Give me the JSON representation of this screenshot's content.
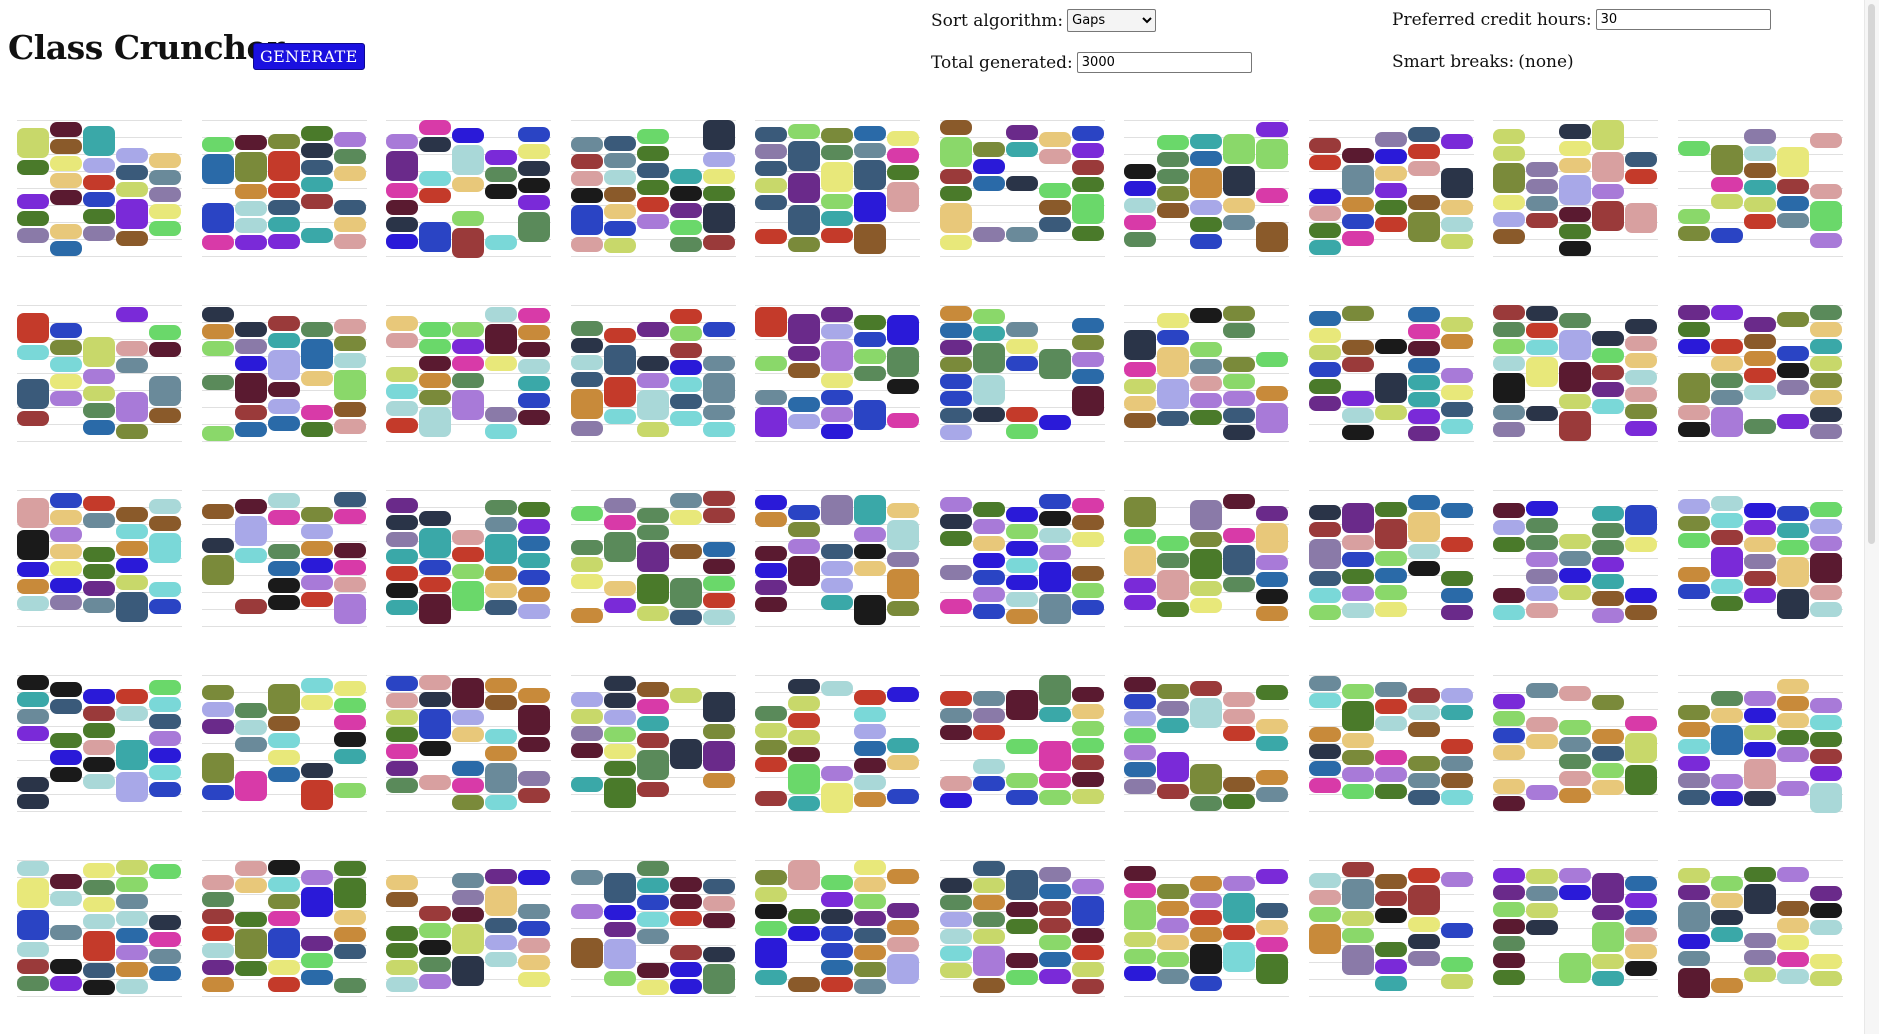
{
  "header": {
    "title": "Class Cruncher",
    "generate_label": "GENERATE"
  },
  "controls": {
    "sort_label": "Sort algorithm:",
    "sort_value": "Gaps",
    "total_label": "Total generated:",
    "total_value": "3000",
    "credit_label": "Preferred credit hours:",
    "credit_value": "30",
    "breaks_label": "Smart breaks:",
    "breaks_value": "(none)"
  },
  "palette": [
    "#7a8a3a",
    "#a9d8d8",
    "#4a7a2a",
    "#9a3a3a",
    "#2a44c4",
    "#5a1a30",
    "#8ad86a",
    "#c8d86a",
    "#7a2ad8",
    "#2a3448",
    "#6a8a9a",
    "#6a2a8a",
    "#c43a2a",
    "#3a5a7a",
    "#a8a8e8",
    "#2a1ad8",
    "#e8c87a",
    "#6ad86a",
    "#1a1a1a",
    "#d83aa8",
    "#8a7aa8",
    "#5a8a5a",
    "#d8a0a0",
    "#2a6aa8",
    "#7ad8d8",
    "#c88a3a",
    "#a87ad8",
    "#3aa8a8",
    "#e8e87a",
    "#8a5a2a"
  ],
  "calendars": {
    "columns": 10,
    "rows": 5
  }
}
